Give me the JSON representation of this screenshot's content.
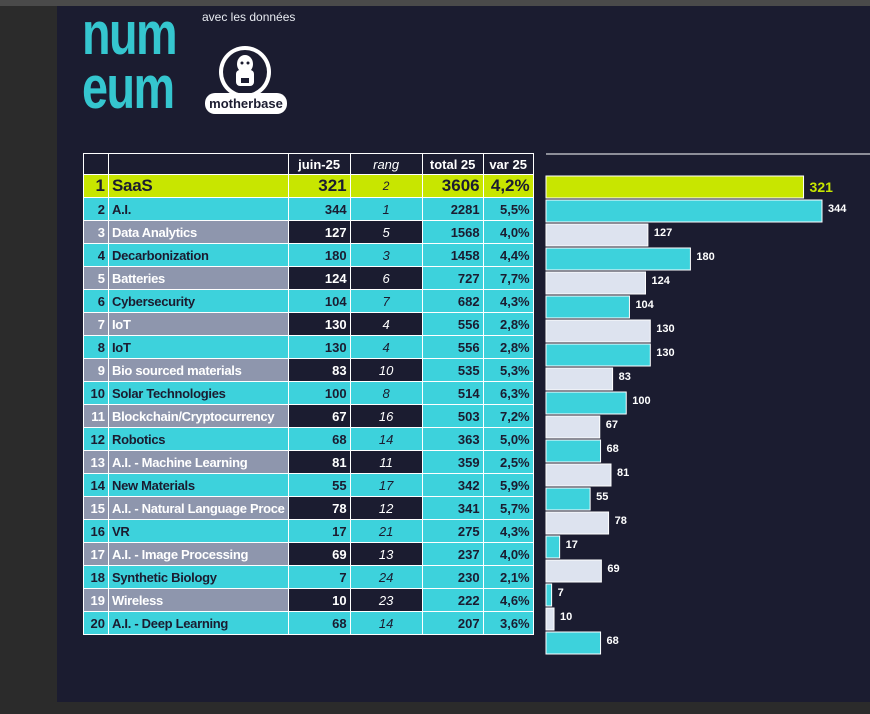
{
  "brand": {
    "logo_line1": "num",
    "logo_line2": "eum",
    "tagline": "avec les données",
    "badge": "motherbase"
  },
  "headers": {
    "month": "juin-25",
    "rank": "rang",
    "total": "total 25",
    "var": "var 25"
  },
  "colors": {
    "cyan": "#3dd2dc",
    "grey": "#8e96ad",
    "highlight": "#c8e600",
    "light_bar": "#dde3ef",
    "background": "#1b1c30"
  },
  "chart_data": {
    "type": "bar",
    "orientation": "horizontal",
    "series_name": "juin-25",
    "rows": [
      {
        "pos": "1",
        "name": "SaaS",
        "juin": 321,
        "rang": "2",
        "total": "3606",
        "var": "4,2%",
        "style": "hi"
      },
      {
        "pos": "2",
        "name": "A.I.",
        "juin": 344,
        "rang": "1",
        "total": "2281",
        "var": "5,5%",
        "style": "cyan"
      },
      {
        "pos": "3",
        "name": "Data Analytics",
        "juin": 127,
        "rang": "5",
        "total": "1568",
        "var": "4,0%",
        "style": "grey"
      },
      {
        "pos": "4",
        "name": "Decarbonization",
        "juin": 180,
        "rang": "3",
        "total": "1458",
        "var": "4,4%",
        "style": "cyan"
      },
      {
        "pos": "5",
        "name": "Batteries",
        "juin": 124,
        "rang": "6",
        "total": "727",
        "var": "7,7%",
        "style": "grey"
      },
      {
        "pos": "6",
        "name": "Cybersecurity",
        "juin": 104,
        "rang": "7",
        "total": "682",
        "var": "4,3%",
        "style": "cyan"
      },
      {
        "pos": "7",
        "name": "IoT",
        "juin": 130,
        "rang": "4",
        "total": "556",
        "var": "2,8%",
        "style": "grey"
      },
      {
        "pos": "8",
        "name": "IoT",
        "juin": 130,
        "rang": "4",
        "total": "556",
        "var": "2,8%",
        "style": "cyan"
      },
      {
        "pos": "9",
        "name": "Bio sourced materials",
        "juin": 83,
        "rang": "10",
        "total": "535",
        "var": "5,3%",
        "style": "grey"
      },
      {
        "pos": "10",
        "name": "Solar Technologies",
        "juin": 100,
        "rang": "8",
        "total": "514",
        "var": "6,3%",
        "style": "cyan"
      },
      {
        "pos": "11",
        "name": "Blockchain/Cryptocurrency",
        "juin": 67,
        "rang": "16",
        "total": "503",
        "var": "7,2%",
        "style": "grey"
      },
      {
        "pos": "12",
        "name": "Robotics",
        "juin": 68,
        "rang": "14",
        "total": "363",
        "var": "5,0%",
        "style": "cyan"
      },
      {
        "pos": "13",
        "name": "A.I. - Machine Learning",
        "juin": 81,
        "rang": "11",
        "total": "359",
        "var": "2,5%",
        "style": "grey"
      },
      {
        "pos": "14",
        "name": "New Materials",
        "juin": 55,
        "rang": "17",
        "total": "342",
        "var": "5,9%",
        "style": "cyan"
      },
      {
        "pos": "15",
        "name": "A.I. - Natural Language Proce",
        "juin": 78,
        "rang": "12",
        "total": "341",
        "var": "5,7%",
        "style": "grey"
      },
      {
        "pos": "16",
        "name": "VR",
        "juin": 17,
        "rang": "21",
        "total": "275",
        "var": "4,3%",
        "style": "cyan"
      },
      {
        "pos": "17",
        "name": "A.I. - Image Processing",
        "juin": 69,
        "rang": "13",
        "total": "237",
        "var": "4,0%",
        "style": "grey"
      },
      {
        "pos": "18",
        "name": "Synthetic Biology",
        "juin": 7,
        "rang": "24",
        "total": "230",
        "var": "2,1%",
        "style": "cyan"
      },
      {
        "pos": "19",
        "name": "Wireless",
        "juin": 10,
        "rang": "23",
        "total": "222",
        "var": "4,6%",
        "style": "grey"
      },
      {
        "pos": "20",
        "name": "A.I. - Deep Learning",
        "juin": 68,
        "rang": "14",
        "total": "207",
        "var": "3,6%",
        "style": "cyan"
      }
    ]
  }
}
